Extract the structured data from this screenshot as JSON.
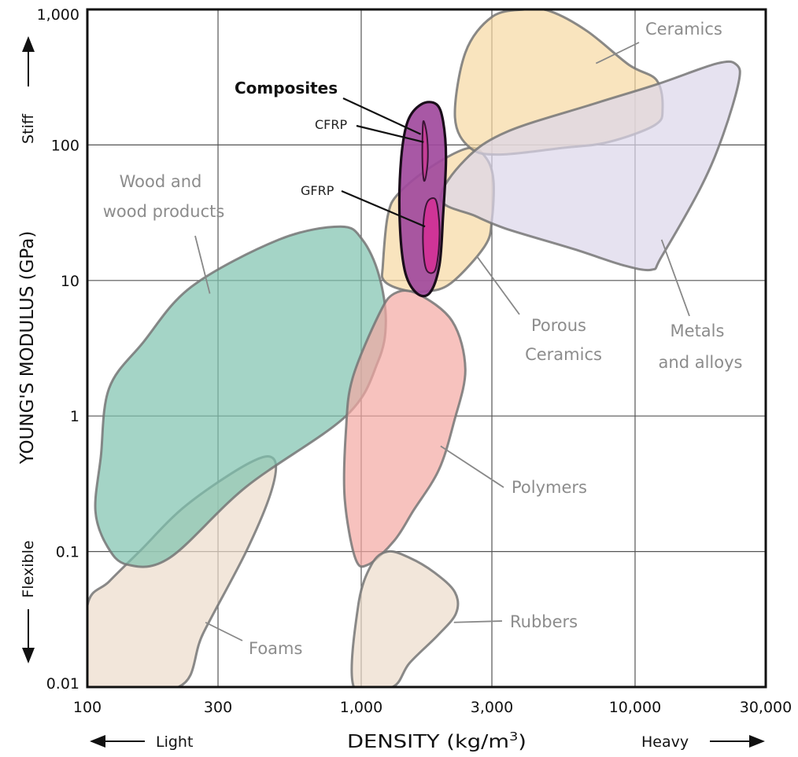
{
  "chart_data": {
    "type": "scatter",
    "chart_style": "Ashby material property chart (bubbles)",
    "x_scale": "log",
    "y_scale": "log",
    "xlabel": "DENSITY (kg/m3)",
    "ylabel": "YOUNG'S MODULUS (GPa)",
    "xlim": [
      100,
      30000
    ],
    "ylim": [
      0.01,
      1000
    ],
    "x_ticks": [
      100,
      300,
      1000,
      3000,
      10000,
      30000
    ],
    "x_tick_labels": [
      "100",
      "300",
      "1,000",
      "3,000",
      "10,000",
      "30,000"
    ],
    "y_ticks": [
      0.01,
      0.1,
      1,
      10,
      100,
      1000
    ],
    "y_tick_labels": [
      "0.01",
      "0.1",
      "1",
      "10",
      "100",
      "1,000"
    ],
    "grid": true,
    "x_direction_labels": {
      "low": "Light",
      "high": "Heavy"
    },
    "y_direction_labels": {
      "low": "Flexible",
      "high": "Stiff"
    },
    "regions": [
      {
        "name": "Foams",
        "label": "Foams",
        "color": "#ecdccb",
        "points": [
          [
            100,
            0.04
          ],
          [
            120,
            0.06
          ],
          [
            155,
            0.1
          ],
          [
            230,
            0.22
          ],
          [
            390,
            0.45
          ],
          [
            480,
            0.48
          ],
          [
            470,
            0.28
          ],
          [
            380,
            0.1
          ],
          [
            265,
            0.025
          ],
          [
            215,
            0.01
          ],
          [
            100,
            0.01
          ]
        ]
      },
      {
        "name": "Wood and wood products",
        "label": "Wood and\nwood products",
        "color": "#7ec2ae",
        "points": [
          [
            112,
            0.5
          ],
          [
            107,
            0.2
          ],
          [
            118,
            0.11
          ],
          [
            140,
            0.08
          ],
          [
            200,
            0.09
          ],
          [
            380,
            0.3
          ],
          [
            880,
            1.0
          ],
          [
            1150,
            2.5
          ],
          [
            1230,
            5
          ],
          [
            1160,
            11
          ],
          [
            1010,
            20
          ],
          [
            840,
            25
          ],
          [
            500,
            20
          ],
          [
            240,
            9
          ],
          [
            160,
            3.5
          ],
          [
            120,
            1.6
          ]
        ]
      },
      {
        "name": "Polymers",
        "label": "Polymers",
        "color": "#f3a8a2",
        "points": [
          [
            1160,
            5.6
          ],
          [
            1320,
            8
          ],
          [
            1600,
            8
          ],
          [
            2150,
            5
          ],
          [
            2400,
            2.2
          ],
          [
            2180,
            0.9
          ],
          [
            1920,
            0.4
          ],
          [
            1550,
            0.2
          ],
          [
            1320,
            0.12
          ],
          [
            1060,
            0.08
          ],
          [
            950,
            0.09
          ],
          [
            870,
            0.25
          ],
          [
            880,
            0.8
          ],
          [
            930,
            1.9
          ]
        ]
      },
      {
        "name": "Rubbers",
        "label": "Rubbers",
        "color": "#ecdccb",
        "points": [
          [
            1090,
            0.08
          ],
          [
            1250,
            0.1
          ],
          [
            1500,
            0.09
          ],
          [
            1850,
            0.07
          ],
          [
            2200,
            0.05
          ],
          [
            2220,
            0.035
          ],
          [
            1900,
            0.024
          ],
          [
            1500,
            0.015
          ],
          [
            1300,
            0.01
          ],
          [
            940,
            0.01
          ],
          [
            975,
            0.04
          ]
        ]
      },
      {
        "name": "Porous Ceramics",
        "label": "Porous\nCeramics",
        "color": "#f6d9a2",
        "points": [
          [
            1200,
            13
          ],
          [
            1250,
            30
          ],
          [
            1370,
            44
          ],
          [
            1820,
            70
          ],
          [
            2480,
            95
          ],
          [
            2860,
            80
          ],
          [
            3040,
            55
          ],
          [
            3000,
            28
          ],
          [
            2830,
            18
          ],
          [
            2120,
            9.5
          ],
          [
            1700,
            8.3
          ],
          [
            1400,
            8.6
          ],
          [
            1210,
            10
          ]
        ]
      },
      {
        "name": "Ceramics",
        "label": "Ceramics",
        "color": "#f6d9a2",
        "points": [
          [
            2200,
            160
          ],
          [
            2400,
            480
          ],
          [
            3000,
            880
          ],
          [
            3950,
            1000
          ],
          [
            4900,
            970
          ],
          [
            6700,
            690
          ],
          [
            9500,
            390
          ],
          [
            12000,
            300
          ],
          [
            12600,
            185
          ],
          [
            11800,
            140
          ],
          [
            8000,
            105
          ],
          [
            5400,
            95
          ],
          [
            3200,
            85
          ],
          [
            2500,
            95
          ]
        ]
      },
      {
        "name": "Metals and alloys",
        "label": "Metals\nand alloys",
        "color": "#dcd6ea",
        "points": [
          [
            1950,
            40
          ],
          [
            2400,
            78
          ],
          [
            3400,
            125
          ],
          [
            7000,
            200
          ],
          [
            12000,
            280
          ],
          [
            20000,
            400
          ],
          [
            23500,
            390
          ],
          [
            23900,
            290
          ],
          [
            21000,
            120
          ],
          [
            17500,
            50
          ],
          [
            12500,
            15
          ],
          [
            11500,
            12
          ],
          [
            9000,
            13
          ],
          [
            6000,
            17
          ],
          [
            3400,
            24
          ],
          [
            2600,
            30
          ]
        ]
      }
    ],
    "composites": {
      "label": "Composites",
      "color": "#a14a9d",
      "points": [
        [
          1660,
          200
        ],
        [
          1880,
          200
        ],
        [
          1990,
          150
        ],
        [
          2040,
          80
        ],
        [
          1990,
          30
        ],
        [
          1930,
          13
        ],
        [
          1780,
          8.1
        ],
        [
          1590,
          8.1
        ],
        [
          1440,
          12
        ],
        [
          1380,
          30
        ],
        [
          1400,
          80
        ],
        [
          1480,
          150
        ]
      ],
      "subregions": [
        {
          "name": "CFRP",
          "label": "CFRP",
          "color": "#c53e97",
          "points": [
            [
              1690,
              150
            ],
            [
              1735,
              120
            ],
            [
              1752,
              82
            ],
            [
              1726,
              60
            ],
            [
              1693,
              55
            ],
            [
              1672,
              78
            ],
            [
              1676,
              125
            ]
          ]
        },
        {
          "name": "GFRP",
          "label": "GFRP",
          "color": "#cf3497",
          "points": [
            [
              1860,
              40
            ],
            [
              1912,
              32
            ],
            [
              1932,
              22
            ],
            [
              1898,
              14
            ],
            [
              1840,
              11.5
            ],
            [
              1730,
              12
            ],
            [
              1685,
              17
            ],
            [
              1690,
              28
            ],
            [
              1745,
              38
            ]
          ]
        }
      ]
    },
    "annotations": [
      {
        "text": "Composites",
        "points_to": [
          1650,
          120
        ]
      },
      {
        "text": "CFRP",
        "points_to": [
          1690,
          105
        ]
      },
      {
        "text": "GFRP",
        "points_to": [
          1710,
          25
        ]
      },
      {
        "text": "Wood and wood products",
        "points_to": [
          280,
          8
        ]
      },
      {
        "text": "Foams",
        "points_to": [
          270,
          0.03
        ]
      },
      {
        "text": "Polymers",
        "points_to": [
          1950,
          0.6
        ]
      },
      {
        "text": "Rubbers",
        "points_to": [
          2180,
          0.03
        ]
      },
      {
        "text": "Porous Ceramics",
        "points_to": [
          2650,
          15
        ]
      },
      {
        "text": "Ceramics",
        "points_to": [
          7200,
          400
        ]
      },
      {
        "text": "Metals and alloys",
        "points_to": [
          12500,
          20
        ]
      }
    ]
  }
}
